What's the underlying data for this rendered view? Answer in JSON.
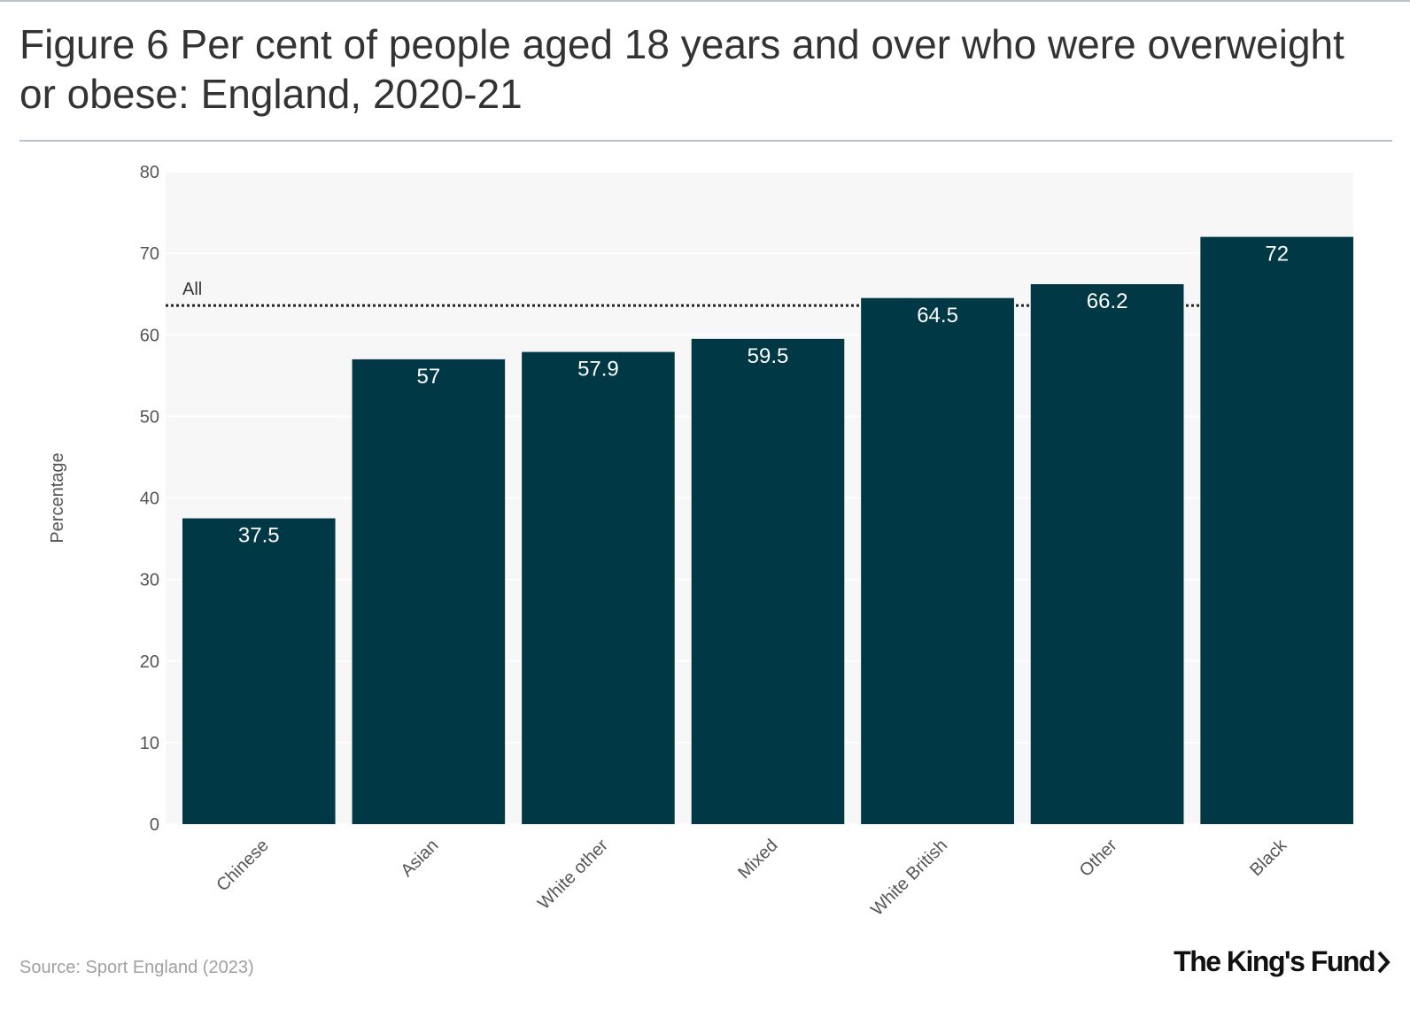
{
  "title": "Figure 6 Per cent of people aged 18 years and over who were overweight or obese: England, 2020-21",
  "source": "Source: Sport England (2023)",
  "brand": "The King's Fund",
  "colors": {
    "bar": "#003846",
    "plot_bg": "#f7f7f7",
    "reference_line": "#222222"
  },
  "chart_data": {
    "type": "bar",
    "categories": [
      "Chinese",
      "Asian",
      "White other",
      "Mixed",
      "White British",
      "Other",
      "Black"
    ],
    "values": [
      37.5,
      57,
      57.9,
      59.5,
      64.5,
      66.2,
      72
    ],
    "data_labels": [
      "37.5",
      "57",
      "57.9",
      "59.5",
      "64.5",
      "66.2",
      "72"
    ],
    "ylabel": "Percentage",
    "xlabel": "",
    "ylim": [
      0,
      80
    ],
    "yticks": [
      0,
      10,
      20,
      30,
      40,
      50,
      60,
      70,
      80
    ],
    "grid": true,
    "reference_line": {
      "label": "All",
      "value": 63.6,
      "style": "dotted"
    }
  }
}
